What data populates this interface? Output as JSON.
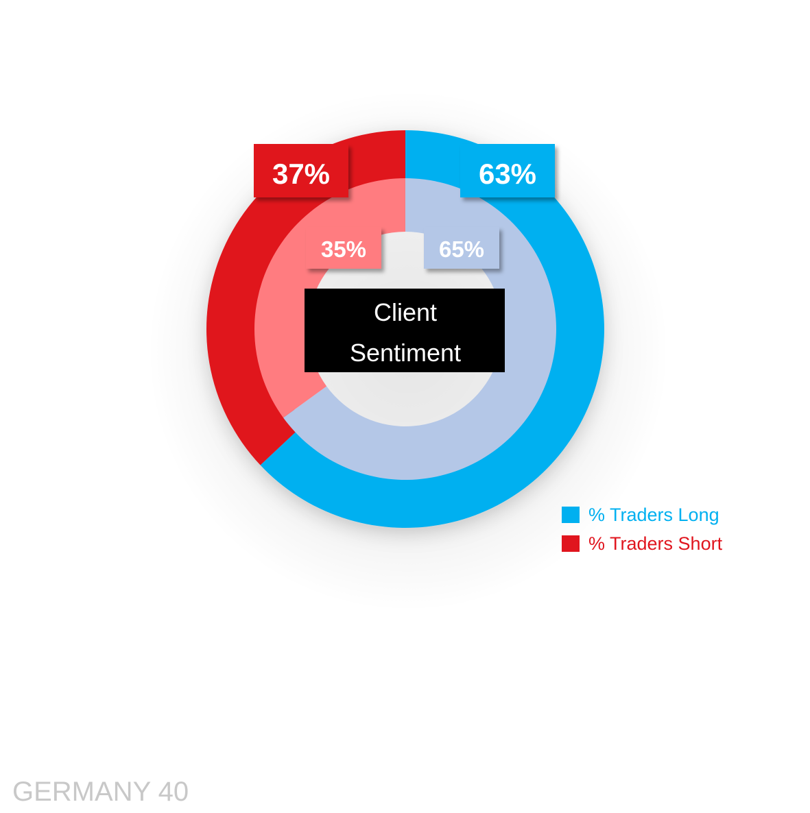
{
  "chart_data": {
    "type": "donut",
    "center_label_lines": [
      "Client",
      "Sentiment"
    ],
    "footer_label": "GERMANY 40",
    "rings": [
      {
        "ring": "outer",
        "segments": [
          {
            "name": "% Traders Long",
            "value": 63,
            "label": "63%",
            "color": "#00B0F0"
          },
          {
            "name": "% Traders Short",
            "value": 37,
            "label": "37%",
            "color": "#E0151E"
          }
        ]
      },
      {
        "ring": "inner",
        "segments": [
          {
            "value": 65,
            "label": "65%",
            "color": "#B4C7E7"
          },
          {
            "value": 35,
            "label": "35%",
            "color": "#FF7C80"
          }
        ]
      }
    ],
    "legend": {
      "placement": "bottom-right",
      "entries": [
        {
          "label": "% Traders Long",
          "color": "#00B0F0"
        },
        {
          "label": "% Traders Short",
          "color": "#E0151E"
        }
      ]
    }
  }
}
